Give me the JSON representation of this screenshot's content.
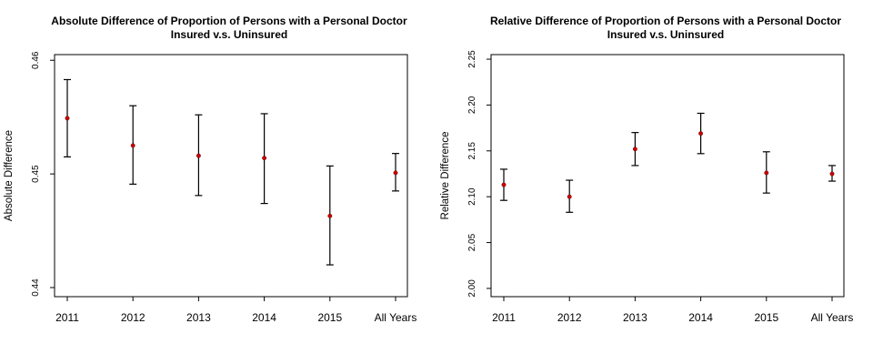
{
  "chart_data": [
    {
      "type": "scatter",
      "subtype": "point-with-error-bars",
      "title": "Absolute Difference of Proportion of Persons with a Personal Doctor",
      "subtitle": "Insured v.s. Uninsured",
      "xlabel": "",
      "ylabel": "Absolute Difference",
      "categories": [
        "2011",
        "2012",
        "2013",
        "2014",
        "2015",
        "All Years"
      ],
      "values": [
        0.4549,
        0.4525,
        0.4516,
        0.4514,
        0.4463,
        0.4501
      ],
      "lower": [
        0.4515,
        0.4491,
        0.4481,
        0.4474,
        0.442,
        0.4485
      ],
      "upper": [
        0.4583,
        0.456,
        0.4552,
        0.4553,
        0.4507,
        0.4518
      ],
      "ylim": [
        0.4392,
        0.4605
      ],
      "yticks": [
        0.44,
        0.45,
        0.46
      ],
      "ytick_labels": [
        "0.44",
        "0.45",
        "0.46"
      ],
      "point_color": "#cc0000",
      "grid": false
    },
    {
      "type": "scatter",
      "subtype": "point-with-error-bars",
      "title": "Relative Difference of Proportion of Persons with a Personal Doctor",
      "subtitle": "Insured v.s. Uninsured",
      "xlabel": "",
      "ylabel": "Relative Difference",
      "categories": [
        "2011",
        "2012",
        "2013",
        "2014",
        "2015",
        "All Years"
      ],
      "values": [
        2.113,
        2.1,
        2.152,
        2.169,
        2.126,
        2.125
      ],
      "lower": [
        2.096,
        2.083,
        2.134,
        2.147,
        2.104,
        2.117
      ],
      "upper": [
        2.13,
        2.118,
        2.17,
        2.191,
        2.149,
        2.134
      ],
      "ylim": [
        1.991,
        2.255
      ],
      "yticks": [
        2.0,
        2.05,
        2.1,
        2.15,
        2.2,
        2.25
      ],
      "ytick_labels": [
        "2.00",
        "2.05",
        "2.10",
        "2.15",
        "2.20",
        "2.25"
      ],
      "point_color": "#cc0000",
      "grid": false
    }
  ]
}
